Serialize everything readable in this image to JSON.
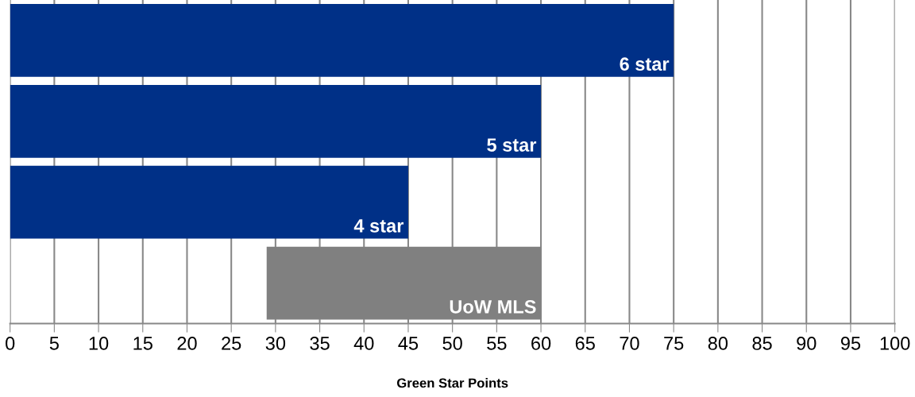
{
  "chart_data": {
    "type": "bar",
    "orientation": "horizontal",
    "xlabel": "Green Star Points",
    "categories": [
      "6 star",
      "5 star",
      "4 star",
      "UoW MLS"
    ],
    "values": [
      75,
      60,
      45,
      31
    ],
    "base": [
      0,
      0,
      0,
      29
    ],
    "colors": [
      "#003087",
      "#003087",
      "#003087",
      "#808080"
    ],
    "xlim": [
      0,
      100
    ],
    "xticks": [
      0,
      5,
      10,
      15,
      20,
      25,
      30,
      35,
      40,
      45,
      50,
      55,
      60,
      65,
      70,
      75,
      80,
      85,
      90,
      95,
      100
    ],
    "grid": "x",
    "tick_labels": "x"
  }
}
